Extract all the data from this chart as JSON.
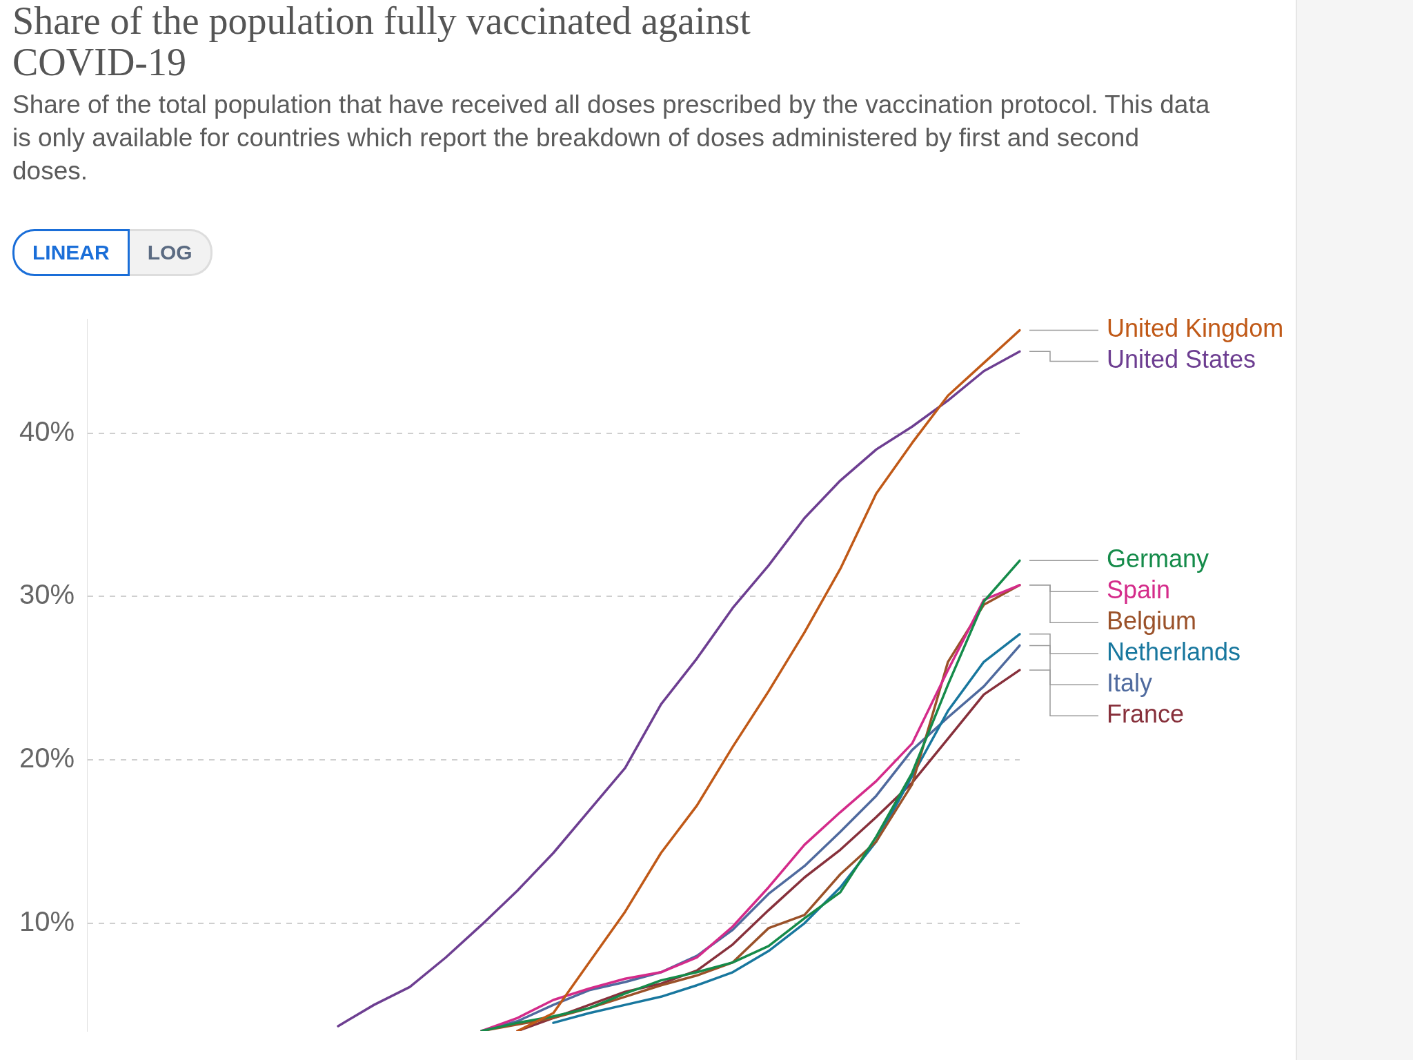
{
  "chart_data": {
    "type": "line",
    "title": "Share of the population fully vaccinated against COVID-19",
    "subtitle": "Share of the total population that have received all doses prescribed by the vaccination protocol. This data is only available for countries which report the breakdown of doses administered by first and second doses.",
    "annotations": [
      "LINEAR",
      "LOG"
    ],
    "categories": [
      null,
      null,
      null,
      null,
      null,
      null,
      null,
      null,
      null,
      null,
      null,
      null,
      null,
      null,
      null,
      null,
      null,
      null,
      null,
      null,
      null,
      null,
      null,
      null,
      null,
      null,
      null
    ],
    "series": [
      {
        "name": "United Kingdom",
        "color": "#c05917",
        "values": [
          null,
          null,
          null,
          null,
          null,
          null,
          null,
          null,
          null,
          null,
          null,
          null,
          3.4,
          4.5,
          7.6,
          10.7,
          14.3,
          17.2,
          20.8,
          24.2,
          27.8,
          31.7,
          36.3,
          39.4,
          42.3,
          44.3,
          46.3
        ]
      },
      {
        "name": "United States",
        "color": "#6d3e91",
        "values": [
          null,
          null,
          null,
          null,
          null,
          null,
          null,
          3.7,
          5.0,
          6.1,
          7.9,
          9.9,
          12.0,
          14.3,
          16.9,
          19.5,
          23.4,
          26.2,
          29.3,
          31.9,
          34.8,
          37.1,
          39.0,
          40.4,
          42.0,
          43.8,
          45.0
        ]
      },
      {
        "name": "Germany",
        "color": "#158b4a",
        "values": [
          null,
          null,
          null,
          null,
          null,
          null,
          null,
          null,
          null,
          null,
          null,
          3.4,
          3.9,
          4.3,
          4.8,
          5.7,
          6.5,
          7.0,
          7.6,
          8.6,
          10.3,
          11.9,
          15.3,
          19.2,
          24.6,
          29.7,
          32.2
        ]
      },
      {
        "name": "Spain",
        "color": "#d42b8a",
        "values": [
          null,
          null,
          null,
          null,
          null,
          null,
          null,
          null,
          null,
          null,
          null,
          3.4,
          4.2,
          5.3,
          6.0,
          6.6,
          7.0,
          7.9,
          9.8,
          12.2,
          14.8,
          16.8,
          18.7,
          21.0,
          25.5,
          29.8,
          30.7
        ]
      },
      {
        "name": "Belgium",
        "color": "#9a5129",
        "values": [
          null,
          null,
          null,
          null,
          null,
          null,
          null,
          null,
          null,
          null,
          null,
          3.4,
          3.8,
          4.2,
          4.8,
          5.5,
          6.2,
          6.8,
          7.6,
          9.7,
          10.5,
          13.0,
          15.0,
          18.5,
          26.0,
          29.5,
          30.7
        ]
      },
      {
        "name": "Netherlands",
        "color": "#18779e",
        "values": [
          null,
          null,
          null,
          null,
          null,
          null,
          null,
          null,
          null,
          null,
          null,
          null,
          null,
          3.9,
          4.5,
          5.0,
          5.5,
          6.2,
          7.0,
          8.3,
          10.0,
          12.2,
          15.0,
          19.0,
          23.0,
          26.0,
          27.7
        ]
      },
      {
        "name": "Italy",
        "color": "#4f6a9e",
        "values": [
          null,
          null,
          null,
          null,
          null,
          null,
          null,
          null,
          null,
          null,
          null,
          3.4,
          4.0,
          5.0,
          5.9,
          6.4,
          7.0,
          8.0,
          9.6,
          11.8,
          13.5,
          15.6,
          17.8,
          20.6,
          22.6,
          24.5,
          27.0
        ]
      },
      {
        "name": "France",
        "color": "#87303b",
        "values": [
          null,
          null,
          null,
          null,
          null,
          null,
          null,
          null,
          null,
          null,
          null,
          null,
          3.4,
          4.2,
          5.0,
          5.8,
          6.3,
          7.1,
          8.7,
          10.8,
          12.8,
          14.5,
          16.5,
          18.6,
          21.3,
          24.0,
          25.5
        ]
      }
    ],
    "ylim": [
      3.4,
      47
    ],
    "yticks": [
      {
        "value": 10,
        "label": "10%"
      },
      {
        "value": 20,
        "label": "20%"
      },
      {
        "value": 30,
        "label": "30%"
      },
      {
        "value": 40,
        "label": "40%"
      }
    ],
    "grid": "y",
    "line_style": "solid",
    "marker": "none",
    "legend": "right",
    "tick_labels": "y"
  }
}
